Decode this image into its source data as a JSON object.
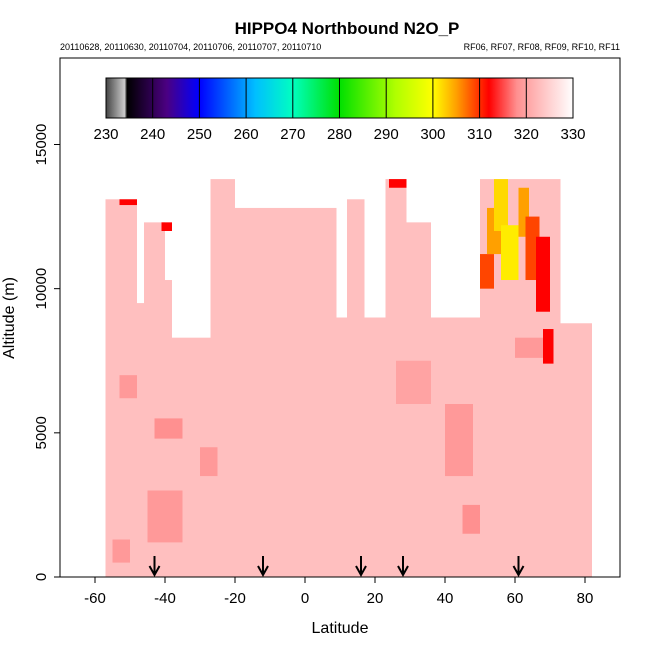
{
  "chart_data": {
    "type": "heatmap",
    "title": "HIPPO4 Northbound N2O_P",
    "subtitle_left": "20110628, 20110630, 20110704, 20110706, 20110707, 20110710",
    "subtitle_right": "RF06, RF07, RF08, RF09, RF10, RF11",
    "xlabel": "Latitude",
    "ylabel": "Altitude (m)",
    "xlim": [
      -70,
      90
    ],
    "ylim": [
      0,
      18000
    ],
    "x_ticks": [
      -60,
      -40,
      -20,
      0,
      20,
      40,
      60,
      80
    ],
    "y_ticks": [
      0,
      5000,
      10000,
      15000
    ],
    "colorbar": {
      "min": 230,
      "max": 330,
      "ticks": [
        230,
        240,
        250,
        260,
        270,
        280,
        290,
        300,
        310,
        320,
        330
      ],
      "stops": [
        {
          "v": 230,
          "c": "#444444"
        },
        {
          "v": 234,
          "c": "#cccccc"
        },
        {
          "v": 234.5,
          "c": "#000000"
        },
        {
          "v": 243,
          "c": "#4b0082"
        },
        {
          "v": 250,
          "c": "#0000ff"
        },
        {
          "v": 262,
          "c": "#00bfff"
        },
        {
          "v": 270,
          "c": "#00ffc0"
        },
        {
          "v": 280,
          "c": "#00e000"
        },
        {
          "v": 292,
          "c": "#b0ff00"
        },
        {
          "v": 300,
          "c": "#ffff00"
        },
        {
          "v": 305,
          "c": "#ffa000"
        },
        {
          "v": 312,
          "c": "#ff0000"
        },
        {
          "v": 318,
          "c": "#ff9090"
        },
        {
          "v": 324,
          "c": "#ffc8c8"
        },
        {
          "v": 330,
          "c": "#ffffff"
        }
      ]
    },
    "base_value": 323,
    "columns": [
      {
        "x0": -57,
        "x1": -51,
        "top": 13100
      },
      {
        "x0": -51,
        "x1": -48,
        "top": 13100
      },
      {
        "x0": -48,
        "x1": -46,
        "top": 9500
      },
      {
        "x0": -46,
        "x1": -40,
        "top": 12300
      },
      {
        "x0": -40,
        "x1": -38,
        "top": 10300
      },
      {
        "x0": -38,
        "x1": -32,
        "top": 8300
      },
      {
        "x0": -32,
        "x1": -27,
        "top": 8300
      },
      {
        "x0": -27,
        "x1": -20,
        "top": 13800
      },
      {
        "x0": -20,
        "x1": -12,
        "top": 12800
      },
      {
        "x0": -12,
        "x1": 9,
        "top": 12800
      },
      {
        "x0": 9,
        "x1": 12,
        "top": 9000
      },
      {
        "x0": 12,
        "x1": 17,
        "top": 13100
      },
      {
        "x0": 17,
        "x1": 23,
        "top": 9000
      },
      {
        "x0": 23,
        "x1": 29,
        "top": 13800
      },
      {
        "x0": 29,
        "x1": 36,
        "top": 12300
      },
      {
        "x0": 36,
        "x1": 44,
        "top": 9000
      },
      {
        "x0": 44,
        "x1": 50,
        "top": 9000
      },
      {
        "x0": 50,
        "x1": 55,
        "top": 13800
      },
      {
        "x0": 55,
        "x1": 63,
        "top": 13800
      },
      {
        "x0": 63,
        "x1": 73,
        "top": 13800
      },
      {
        "x0": 73,
        "x1": 82,
        "top": 8800
      }
    ],
    "patches": [
      {
        "x0": -43,
        "x1": -35,
        "y0": 4800,
        "y1": 5500,
        "v": 318
      },
      {
        "x0": -45,
        "x1": -35,
        "y0": 1200,
        "y1": 3000,
        "v": 319
      },
      {
        "x0": -30,
        "x1": -25,
        "y0": 3500,
        "y1": 4500,
        "v": 319
      },
      {
        "x0": 40,
        "x1": 48,
        "y0": 3500,
        "y1": 6000,
        "v": 319
      },
      {
        "x0": 26,
        "x1": 36,
        "y0": 6000,
        "y1": 7500,
        "v": 320
      },
      {
        "x0": -53,
        "x1": -48,
        "y0": 6200,
        "y1": 7000,
        "v": 319
      },
      {
        "x0": 45,
        "x1": 50,
        "y0": 1500,
        "y1": 2500,
        "v": 318
      },
      {
        "x0": 60,
        "x1": 70,
        "y0": 7600,
        "y1": 8300,
        "v": 319
      },
      {
        "x0": -55,
        "x1": -50,
        "y0": 500,
        "y1": 1300,
        "v": 319
      },
      {
        "x0": -53,
        "x1": -48,
        "y0": 12900,
        "y1": 13100,
        "v": 312
      },
      {
        "x0": -41,
        "x1": -38,
        "y0": 12000,
        "y1": 12300,
        "v": 312
      },
      {
        "x0": 24,
        "x1": 29,
        "y0": 13500,
        "y1": 13800,
        "v": 312
      },
      {
        "x0": 50,
        "x1": 54,
        "y0": 10000,
        "y1": 11200,
        "v": 309
      },
      {
        "x0": 52,
        "x1": 56,
        "y0": 11200,
        "y1": 12800,
        "v": 305
      },
      {
        "x0": 54,
        "x1": 58,
        "y0": 12000,
        "y1": 13800,
        "v": 302
      },
      {
        "x0": 56,
        "x1": 61,
        "y0": 10300,
        "y1": 12200,
        "v": 301
      },
      {
        "x0": 61,
        "x1": 64,
        "y0": 11800,
        "y1": 13500,
        "v": 305
      },
      {
        "x0": 63,
        "x1": 67,
        "y0": 10300,
        "y1": 12500,
        "v": 309
      },
      {
        "x0": 66,
        "x1": 70,
        "y0": 9200,
        "y1": 11800,
        "v": 312
      },
      {
        "x0": 68,
        "x1": 71,
        "y0": 7400,
        "y1": 8600,
        "v": 312
      }
    ],
    "arrows_latitude": [
      -43,
      -12,
      16,
      28,
      61
    ]
  }
}
